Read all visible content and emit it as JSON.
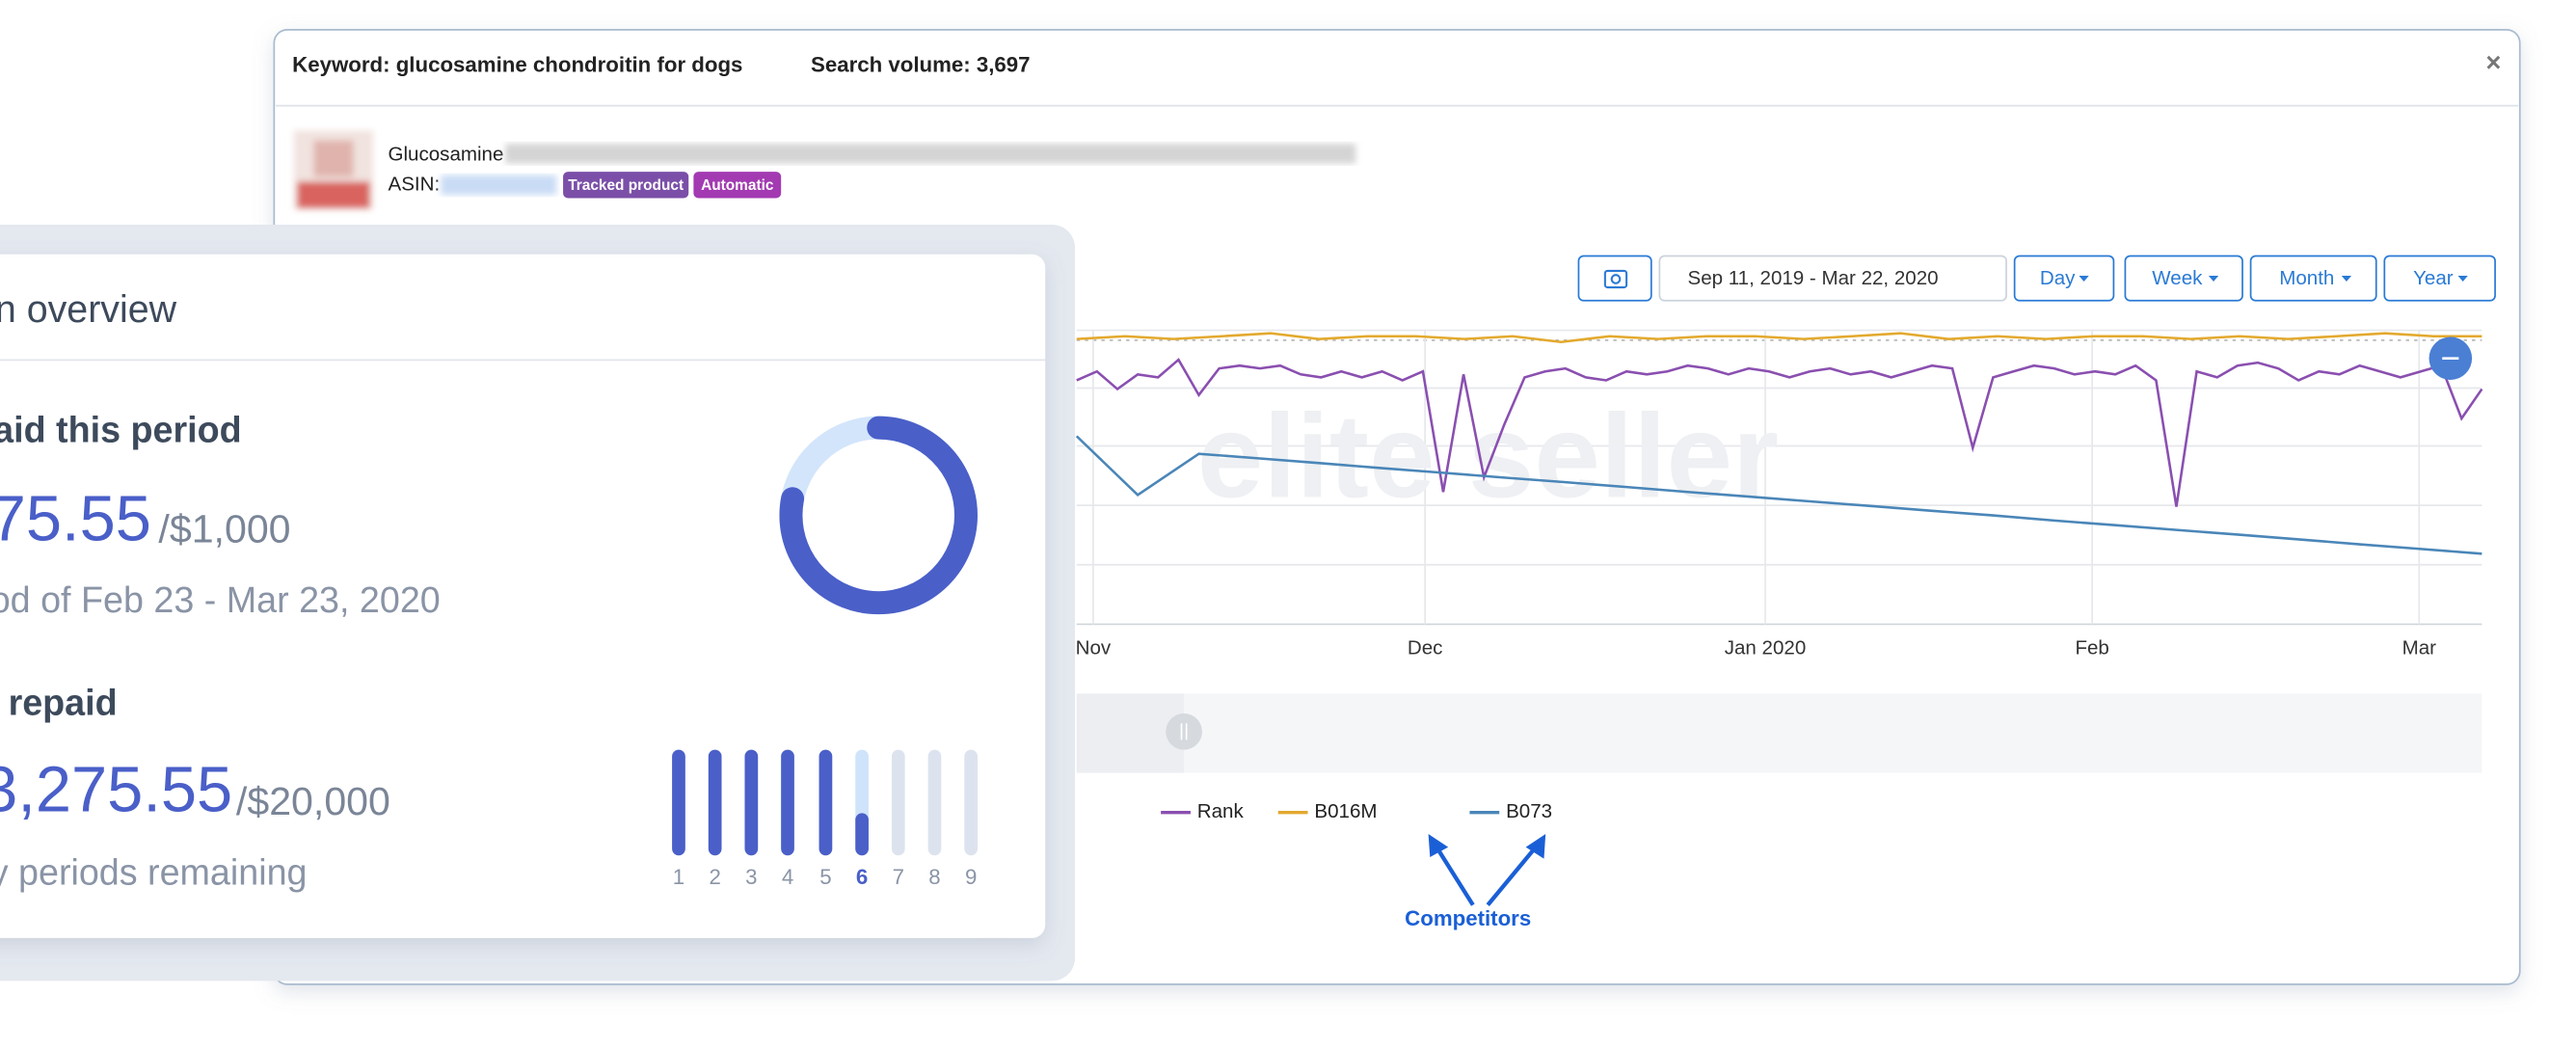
{
  "modal": {
    "keyword": "Keyword: glucosamine chondroitin for dogs",
    "search_volume": "Search volume: 3,697",
    "close": "×",
    "product_name": "Glucosamine",
    "asin_label": "ASIN:",
    "badges": [
      "Tracked product",
      "Automatic"
    ],
    "date_range": "Sep 11, 2019 - Mar 22, 2020",
    "buttons": [
      "Day",
      "Week",
      "Month",
      "Year"
    ],
    "watermark": "elite seller",
    "annotation": "Competitors"
  },
  "chart_data": {
    "type": "line",
    "x_labels": [
      "Nov",
      "Dec",
      "Jan 2020",
      "Feb",
      "Mar"
    ],
    "ylim": [
      0,
      100
    ],
    "series": [
      {
        "name": "Rank",
        "color": "#8a4fb0",
        "values": [
          83,
          86,
          80,
          85,
          84,
          90,
          78,
          87,
          88,
          87,
          88,
          85,
          84,
          86,
          84,
          86,
          83,
          86,
          45,
          85,
          50,
          68,
          84,
          86,
          87,
          84,
          83,
          86,
          85,
          86,
          88,
          87,
          85,
          87,
          86,
          84,
          86,
          87,
          85,
          86,
          84,
          86,
          88,
          87,
          60,
          84,
          86,
          88,
          87,
          85,
          86,
          85,
          88,
          83,
          40,
          86,
          84,
          88,
          89,
          87,
          83,
          86,
          85,
          88,
          86,
          84,
          86,
          88,
          70,
          80
        ]
      },
      {
        "name": "B016M",
        "color": "#e3a92e",
        "values": [
          97,
          98,
          97,
          98,
          99,
          97,
          98,
          98,
          97,
          98,
          96,
          98,
          97,
          98,
          98,
          97,
          98,
          99,
          97,
          98,
          97,
          98,
          98,
          97,
          98,
          97,
          98,
          99,
          98,
          98
        ]
      },
      {
        "name": "B073",
        "color": "#4a86b8",
        "values": [
          64,
          44,
          58,
          56.4,
          54.8,
          53.1,
          51.5,
          49.9,
          48.3,
          46.7,
          45,
          43.4,
          41.8,
          40.2,
          38.6,
          37,
          35.3,
          33.7,
          32.1,
          30.5,
          28.9,
          27.2,
          25.6,
          24
        ]
      }
    ]
  },
  "overview": {
    "title": "n overview",
    "paid_heading": "aid this period",
    "paid_amount": "75.55",
    "paid_limit": "/$1,000",
    "period": "od of Feb 23 - Mar 23, 2020",
    "repaid_heading": "repaid",
    "repaid_amount": "3,275.55",
    "repaid_limit": "/$20,000",
    "remaining": "y periods remaining",
    "donut_percent": 78,
    "period_labels": [
      1,
      2,
      3,
      4,
      5,
      6,
      7,
      8,
      9
    ],
    "period_fill": [
      100,
      100,
      100,
      100,
      100,
      40,
      0,
      0,
      0
    ]
  }
}
